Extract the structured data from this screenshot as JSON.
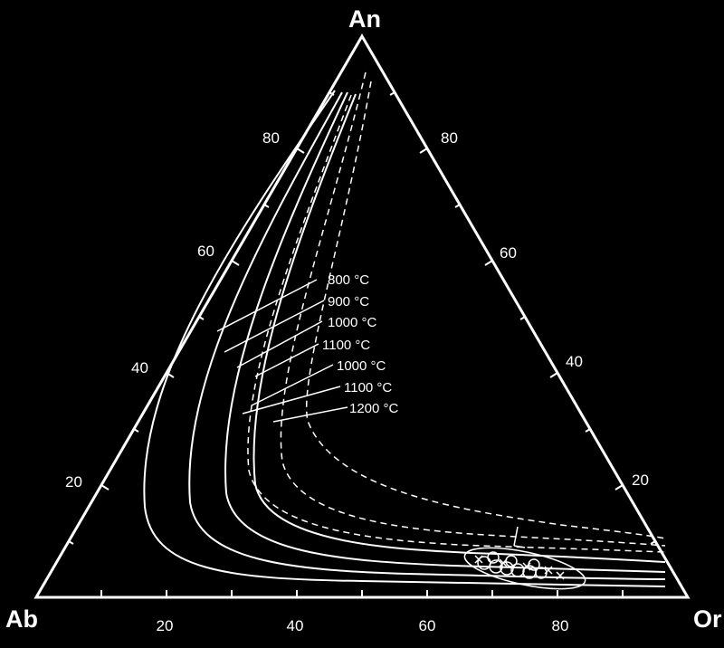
{
  "vertices": {
    "top": "An",
    "left": "Ab",
    "right": "Or"
  },
  "ticks": {
    "left": [
      "20",
      "40",
      "60",
      "80"
    ],
    "right": [
      "20",
      "40",
      "60",
      "80"
    ],
    "bottom": [
      "20",
      "40",
      "60",
      "80"
    ]
  },
  "curve_labels": [
    "800 °C",
    "900 °C",
    "1000 °C",
    "1100 °C",
    "1000 °C",
    "1100 °C",
    "1200 °C"
  ],
  "colors": {
    "background": "#000000",
    "lines": "#ffffff"
  }
}
